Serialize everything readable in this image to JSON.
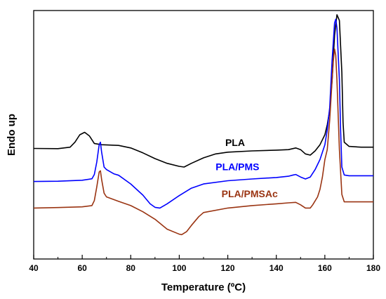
{
  "chart_data": {
    "type": "line",
    "title": "",
    "xlabel": "Temperature (ºC)",
    "ylabel": "Endo up",
    "xlim": [
      40,
      180
    ],
    "ylim": [
      0,
      1
    ],
    "xticks": [
      40,
      60,
      80,
      100,
      120,
      140,
      160,
      180
    ],
    "yticks_shown": false,
    "grid": false,
    "legend": "inline-labels",
    "series": [
      {
        "name": "PLA",
        "color": "#000000",
        "points": [
          [
            40,
            0.445
          ],
          [
            50,
            0.444
          ],
          [
            55,
            0.45
          ],
          [
            57,
            0.47
          ],
          [
            59,
            0.5
          ],
          [
            61,
            0.51
          ],
          [
            63,
            0.495
          ],
          [
            65,
            0.465
          ],
          [
            68,
            0.46
          ],
          [
            75,
            0.457
          ],
          [
            80,
            0.447
          ],
          [
            85,
            0.427
          ],
          [
            90,
            0.404
          ],
          [
            95,
            0.385
          ],
          [
            100,
            0.373
          ],
          [
            102,
            0.37
          ],
          [
            105,
            0.385
          ],
          [
            110,
            0.407
          ],
          [
            115,
            0.423
          ],
          [
            120,
            0.43
          ],
          [
            130,
            0.435
          ],
          [
            140,
            0.438
          ],
          [
            145,
            0.44
          ],
          [
            148,
            0.447
          ],
          [
            150,
            0.44
          ],
          [
            152,
            0.423
          ],
          [
            154,
            0.418
          ],
          [
            156,
            0.435
          ],
          [
            158,
            0.46
          ],
          [
            160,
            0.5
          ],
          [
            161,
            0.54
          ],
          [
            162,
            0.6
          ],
          [
            163,
            0.72
          ],
          [
            164,
            0.9
          ],
          [
            165,
            0.983
          ],
          [
            166,
            0.96
          ],
          [
            167,
            0.75
          ],
          [
            167.5,
            0.55
          ],
          [
            168,
            0.47
          ],
          [
            170,
            0.453
          ],
          [
            175,
            0.45
          ],
          [
            180,
            0.45
          ]
        ]
      },
      {
        "name": "PLA/PMS",
        "color": "#0000ff",
        "points": [
          [
            40,
            0.312
          ],
          [
            50,
            0.313
          ],
          [
            60,
            0.317
          ],
          [
            64,
            0.323
          ],
          [
            65,
            0.34
          ],
          [
            66,
            0.39
          ],
          [
            67,
            0.46
          ],
          [
            67.5,
            0.47
          ],
          [
            68,
            0.43
          ],
          [
            69,
            0.37
          ],
          [
            70,
            0.36
          ],
          [
            73,
            0.343
          ],
          [
            75,
            0.337
          ],
          [
            80,
            0.302
          ],
          [
            85,
            0.257
          ],
          [
            88,
            0.222
          ],
          [
            90,
            0.208
          ],
          [
            92,
            0.205
          ],
          [
            95,
            0.222
          ],
          [
            100,
            0.255
          ],
          [
            105,
            0.285
          ],
          [
            110,
            0.302
          ],
          [
            120,
            0.315
          ],
          [
            130,
            0.322
          ],
          [
            140,
            0.328
          ],
          [
            145,
            0.333
          ],
          [
            147,
            0.338
          ],
          [
            148,
            0.34
          ],
          [
            150,
            0.33
          ],
          [
            152,
            0.322
          ],
          [
            154,
            0.33
          ],
          [
            156,
            0.36
          ],
          [
            158,
            0.4
          ],
          [
            160,
            0.46
          ],
          [
            161,
            0.52
          ],
          [
            162,
            0.61
          ],
          [
            163,
            0.8
          ],
          [
            164,
            0.95
          ],
          [
            164.5,
            0.965
          ],
          [
            165,
            0.93
          ],
          [
            166,
            0.72
          ],
          [
            166.5,
            0.52
          ],
          [
            167,
            0.37
          ],
          [
            168,
            0.338
          ],
          [
            170,
            0.335
          ],
          [
            175,
            0.335
          ],
          [
            180,
            0.335
          ]
        ]
      },
      {
        "name": "PLA/PMSAc",
        "color": "#9a3412",
        "points": [
          [
            40,
            0.205
          ],
          [
            50,
            0.207
          ],
          [
            60,
            0.21
          ],
          [
            64,
            0.215
          ],
          [
            65,
            0.235
          ],
          [
            66,
            0.29
          ],
          [
            67,
            0.35
          ],
          [
            67.5,
            0.355
          ],
          [
            68,
            0.32
          ],
          [
            69,
            0.265
          ],
          [
            70,
            0.25
          ],
          [
            75,
            0.232
          ],
          [
            80,
            0.215
          ],
          [
            85,
            0.19
          ],
          [
            90,
            0.16
          ],
          [
            95,
            0.12
          ],
          [
            100,
            0.1
          ],
          [
            101,
            0.098
          ],
          [
            103,
            0.11
          ],
          [
            105,
            0.135
          ],
          [
            108,
            0.17
          ],
          [
            110,
            0.187
          ],
          [
            120,
            0.205
          ],
          [
            130,
            0.215
          ],
          [
            140,
            0.222
          ],
          [
            145,
            0.226
          ],
          [
            148,
            0.228
          ],
          [
            150,
            0.218
          ],
          [
            152,
            0.205
          ],
          [
            154,
            0.205
          ],
          [
            155,
            0.218
          ],
          [
            157,
            0.25
          ],
          [
            158,
            0.28
          ],
          [
            159,
            0.33
          ],
          [
            160,
            0.4
          ],
          [
            160.5,
            0.42
          ],
          [
            161,
            0.44
          ],
          [
            162,
            0.56
          ],
          [
            163,
            0.72
          ],
          [
            163.5,
            0.8
          ],
          [
            164,
            0.845
          ],
          [
            164.5,
            0.82
          ],
          [
            165,
            0.72
          ],
          [
            166,
            0.44
          ],
          [
            167,
            0.26
          ],
          [
            168,
            0.23
          ],
          [
            170,
            0.23
          ],
          [
            175,
            0.23
          ],
          [
            180,
            0.23
          ]
        ]
      }
    ],
    "annotations": [
      {
        "text": "PLA",
        "series": 0,
        "x": 123,
        "y": 0.455
      },
      {
        "text": "PLA/PMS",
        "series": 1,
        "x": 124,
        "y": 0.357
      },
      {
        "text": "PLA/PMSAc",
        "series": 2,
        "x": 129,
        "y": 0.248
      }
    ]
  }
}
